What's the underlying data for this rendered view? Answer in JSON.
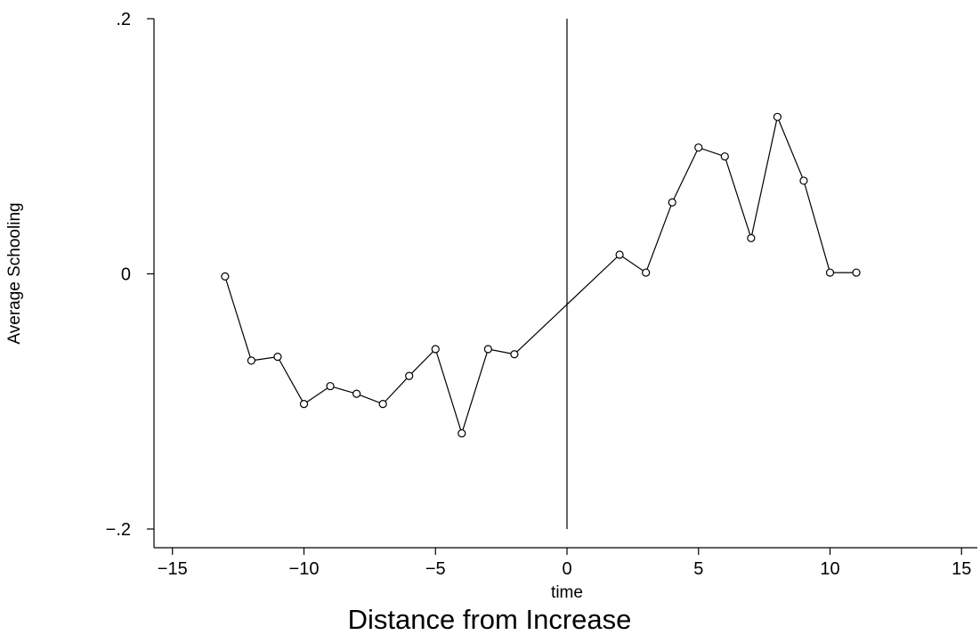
{
  "chart_data": {
    "type": "line",
    "title": "",
    "caption": "Distance from Increase",
    "xlabel": "time",
    "ylabel": "Average Schooling",
    "xlim": [
      -15,
      15
    ],
    "ylim": [
      -0.2,
      0.2
    ],
    "x_ticks": [
      -15,
      -10,
      -5,
      0,
      5,
      10,
      15
    ],
    "x_tick_labels": [
      "−15",
      "−10",
      "−5",
      "0",
      "5",
      "10",
      "15"
    ],
    "y_ticks": [
      -0.2,
      0,
      0.2
    ],
    "y_tick_labels": [
      "−.2",
      "0",
      ".2"
    ],
    "vertical_reference_line": {
      "x": 0,
      "y_from": -0.2,
      "y_to": 0.2
    },
    "grid": false,
    "marker": "hollow-circle",
    "line_color": "#000000",
    "series": [
      {
        "x": [
          -13,
          -12,
          -11,
          -10,
          -9,
          -8,
          -7,
          -6,
          -5,
          -4,
          -3,
          -2,
          2,
          3,
          4,
          5,
          6,
          7,
          8,
          9,
          10,
          11
        ],
        "y": [
          -0.002,
          -0.068,
          -0.065,
          -0.102,
          -0.088,
          -0.094,
          -0.102,
          -0.08,
          -0.059,
          -0.125,
          -0.059,
          -0.063,
          0.015,
          0.001,
          0.056,
          0.099,
          0.092,
          0.028,
          0.123,
          0.073,
          0.001,
          0.001
        ]
      }
    ]
  }
}
